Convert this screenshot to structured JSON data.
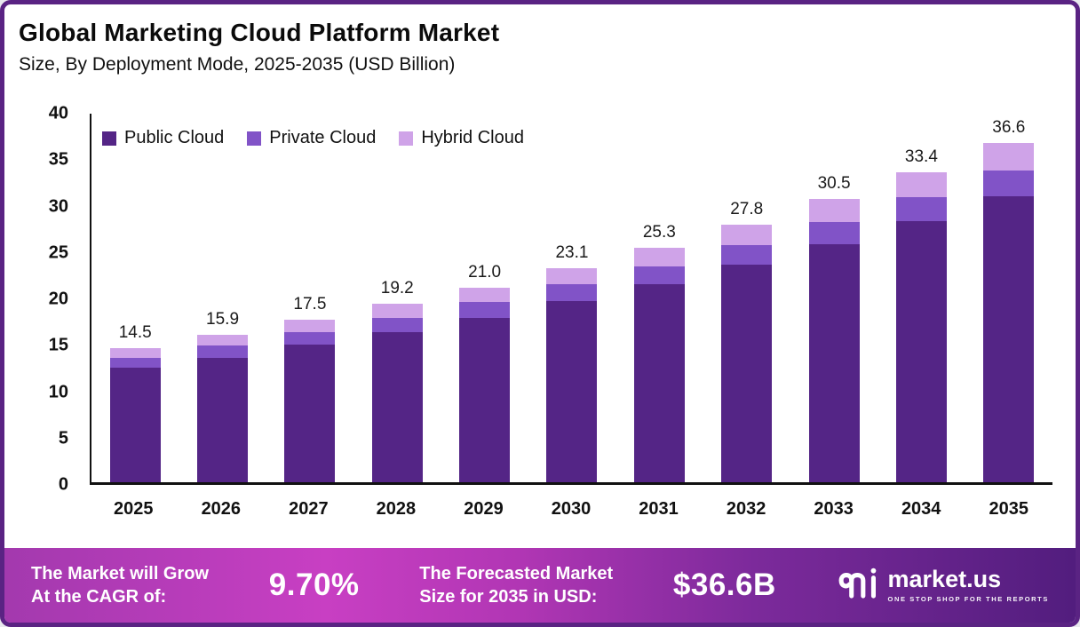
{
  "header": {
    "title": "Global Marketing Cloud Platform Market",
    "subtitle": "Size, By Deployment Mode, 2025-2035 (USD Billion)"
  },
  "chart_data": {
    "type": "bar",
    "stacked": true,
    "title": "Global Marketing Cloud Platform Market",
    "subtitle": "Size, By Deployment Mode, 2025-2035 (USD Billion)",
    "categories": [
      "2025",
      "2026",
      "2027",
      "2028",
      "2029",
      "2030",
      "2031",
      "2032",
      "2033",
      "2034",
      "2035"
    ],
    "series": [
      {
        "name": "Public Cloud",
        "color": "#542586",
        "values": [
          12.3,
          13.4,
          14.8,
          16.2,
          17.7,
          19.5,
          21.3,
          23.4,
          25.6,
          28.1,
          30.8
        ]
      },
      {
        "name": "Private Cloud",
        "color": "#8153c7",
        "values": [
          1.1,
          1.3,
          1.4,
          1.5,
          1.7,
          1.8,
          2.0,
          2.2,
          2.4,
          2.6,
          2.8
        ]
      },
      {
        "name": "Hybrid Cloud",
        "color": "#cfa3e8",
        "values": [
          1.1,
          1.2,
          1.3,
          1.5,
          1.6,
          1.8,
          2.0,
          2.2,
          2.5,
          2.7,
          3.0
        ]
      }
    ],
    "totals": [
      14.5,
      15.9,
      17.5,
      19.2,
      21.0,
      23.1,
      25.3,
      27.8,
      30.5,
      33.4,
      36.6
    ],
    "total_labels": [
      "14.5",
      "15.9",
      "17.5",
      "19.2",
      "21.0",
      "23.1",
      "25.3",
      "27.8",
      "30.5",
      "33.4",
      "36.6"
    ],
    "xlabel": "",
    "ylabel": "",
    "ylim": [
      0,
      40
    ],
    "yticks": [
      0,
      5,
      10,
      15,
      20,
      25,
      30,
      35,
      40
    ],
    "grid": false,
    "legend_position": "top-left"
  },
  "footer": {
    "cagr_label_line1": "The Market will Grow",
    "cagr_label_line2": "At the CAGR of:",
    "cagr_value": "9.70%",
    "forecast_label_line1": "The Forecasted Market",
    "forecast_label_line2": "Size for 2035 in USD:",
    "forecast_value": "$36.6B",
    "brand_name": "market.us",
    "brand_tagline": "ONE STOP SHOP FOR THE REPORTS"
  },
  "colors": {
    "public_cloud": "#542586",
    "private_cloud": "#8153c7",
    "hybrid_cloud": "#cfa3e8",
    "frame_border": "#5a2383",
    "footer_gradient_start": "#a339ae",
    "footer_gradient_mid": "#c83fc3",
    "footer_gradient_end": "#521d7e"
  }
}
